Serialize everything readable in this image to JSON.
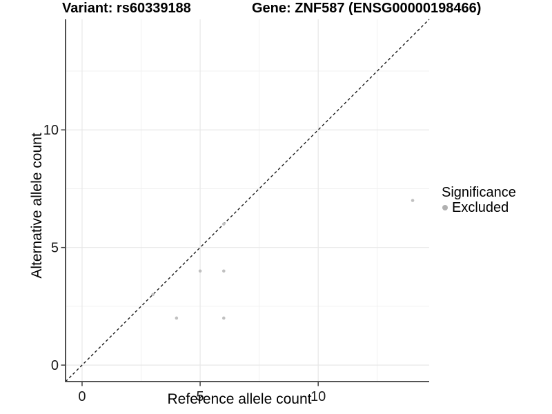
{
  "chart_data": {
    "type": "scatter",
    "title_left": "Variant: rs60339188",
    "title_right": "Gene: ZNF587 (ENSG00000198466)",
    "xlabel": "Reference allele count",
    "ylabel": "Alternative allele count",
    "xlim": [
      -0.7,
      14.7
    ],
    "ylim": [
      -0.7,
      14.7
    ],
    "xticks": [
      0,
      5,
      10
    ],
    "yticks": [
      0,
      5,
      10
    ],
    "xminor": [
      2.5,
      7.5,
      12.5
    ],
    "yminor": [
      2.5,
      7.5,
      12.5
    ],
    "grid": "major+minor",
    "reference_line": {
      "type": "identity",
      "slope": 1,
      "intercept": 0,
      "style": "dashed",
      "color": "#1a1a1a"
    },
    "series": [
      {
        "name": "Excluded",
        "color": "#c0c0c0",
        "points": [
          [
            3,
            3
          ],
          [
            4,
            2
          ],
          [
            5,
            4
          ],
          [
            6,
            2
          ],
          [
            6,
            4
          ],
          [
            6,
            6
          ],
          [
            14,
            7
          ]
        ]
      }
    ],
    "legend": {
      "title": "Significance",
      "position": "right",
      "entries": [
        {
          "label": "Excluded",
          "color": "#b0b0b0",
          "marker": "circle-icon"
        }
      ]
    },
    "colors": {
      "point": "#c0c0c0",
      "axis_line": "#3c3c3c",
      "major_grid": "#e7e7e7",
      "minor_grid": "#f1f1f1",
      "tick_label": "#1a1a1a"
    }
  }
}
